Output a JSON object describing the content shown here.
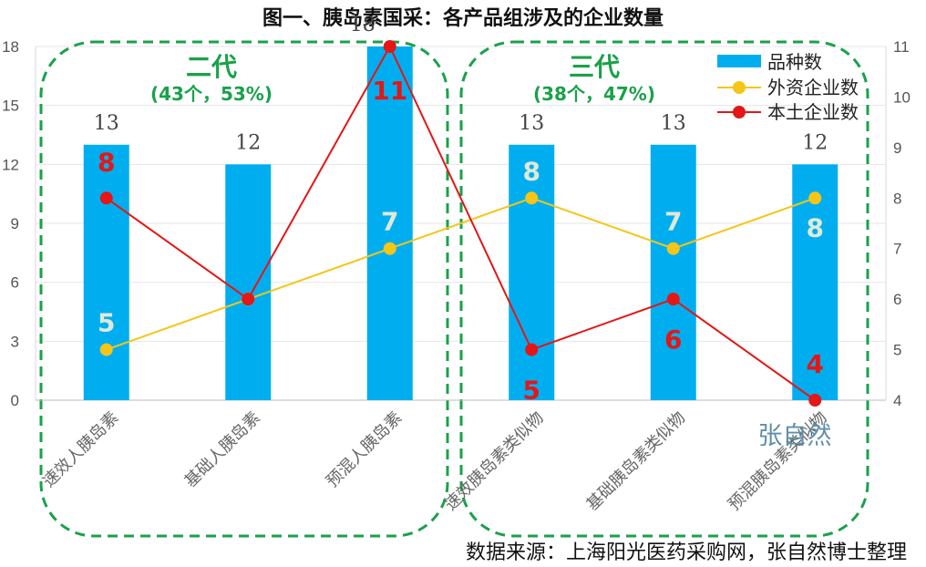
{
  "chart_data": {
    "type": "bar",
    "title": "图一、胰岛素国采：各产品组涉及的企业数量",
    "categories": [
      "速效人胰岛素",
      "基础人胰岛素",
      "预混人胰岛素",
      "速效胰岛素类似物",
      "基础胰岛素类似物",
      "预混胰岛素类似物"
    ],
    "series": [
      {
        "name": "品种数",
        "type": "bar",
        "axis": "left",
        "color": "#00aeef",
        "values": [
          13,
          12,
          18,
          13,
          13,
          12
        ]
      },
      {
        "name": "外资企业数",
        "type": "line",
        "axis": "right",
        "color": "#f5c518",
        "values": [
          5,
          6,
          7,
          8,
          7,
          8
        ]
      },
      {
        "name": "本土企业数",
        "type": "line",
        "axis": "right",
        "color": "#e41616",
        "values": [
          8,
          6,
          11,
          5,
          6,
          4
        ]
      }
    ],
    "y_left": {
      "min": 0,
      "max": 18,
      "ticks": [
        0,
        3,
        6,
        9,
        12,
        15,
        18
      ]
    },
    "y_right": {
      "min": 4,
      "max": 11,
      "ticks": [
        4,
        5,
        6,
        7,
        8,
        9,
        10,
        11
      ]
    },
    "bar_labels": [
      "13",
      "12",
      "18",
      "13",
      "13",
      "12"
    ],
    "foreign_labels": [
      "5",
      "",
      "7",
      "8",
      "7",
      "8"
    ],
    "domestic_labels": [
      "8",
      "",
      "11",
      "5",
      "6",
      "4"
    ],
    "groups": [
      {
        "name": "二代",
        "sub": "(43个，53%)"
      },
      {
        "name": "三代",
        "sub": "(38个，47%)"
      }
    ],
    "legend_position": "top-right",
    "source": "数据来源：上海阳光医药采购网，张自然博士整理",
    "watermark": "张自然"
  }
}
